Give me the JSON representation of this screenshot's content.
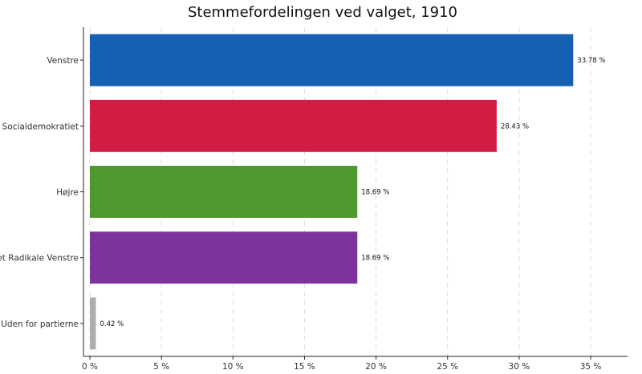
{
  "chart_data": {
    "type": "bar",
    "orientation": "horizontal",
    "title": "Stemmefordelingen ved valget, 1910",
    "xlabel": "",
    "ylabel": "",
    "categories": [
      "Venstre",
      "Socialdemokratiet",
      "Højre",
      "Det Radikale Venstre",
      "Uden for partierne"
    ],
    "values": [
      33.78,
      28.43,
      18.69,
      18.69,
      0.42
    ],
    "value_labels": [
      "33.78 %",
      "28.43 %",
      "18.69 %",
      "18.69 %",
      "0.42 %"
    ],
    "colors": [
      "#1560b2",
      "#d31c43",
      "#4e982f",
      "#7c349c",
      "#adadad"
    ],
    "xlim": [
      0,
      37.8
    ],
    "x_ticks": [
      0,
      5,
      10,
      15,
      20,
      25,
      30,
      35
    ],
    "x_tick_labels": [
      "0 %",
      "5 %",
      "10 %",
      "15 %",
      "20 %",
      "25 %",
      "30 %",
      "35 %"
    ],
    "grid": "vertical-dashed",
    "legend": "none"
  }
}
